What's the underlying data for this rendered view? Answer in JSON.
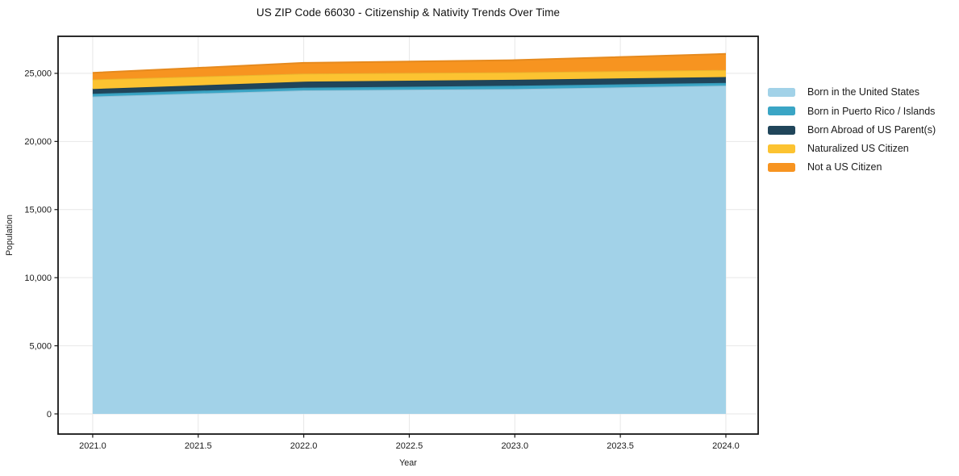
{
  "title": "US ZIP Code 66030 - Citizenship & Nativity Trends Over Time",
  "chart_data": {
    "type": "area",
    "stacked": true,
    "title": "US ZIP Code 66030 - Citizenship & Nativity Trends Over Time",
    "xlabel": "Year",
    "ylabel": "Population",
    "x": [
      2021,
      2022,
      2023,
      2024
    ],
    "series": [
      {
        "name": "Born in the United States",
        "color": "#a2d2e8",
        "values": [
          23300,
          23750,
          23850,
          24100
        ]
      },
      {
        "name": "Born in Puerto Rico / Islands",
        "color": "#3aa5c5",
        "values": [
          200,
          200,
          240,
          200
        ]
      },
      {
        "name": "Born Abroad of US Parent(s)",
        "color": "#20455a",
        "values": [
          350,
          440,
          440,
          430
        ]
      },
      {
        "name": "Naturalized US Citizen",
        "color": "#fcc331",
        "values": [
          700,
          590,
          550,
          520
        ]
      },
      {
        "name": "Not a US Citizen",
        "color": "#f79420",
        "values": [
          490,
          790,
          890,
          1180
        ]
      }
    ],
    "xlim": [
      2020.836,
      2024.153
    ],
    "ylim": [
      -1480,
      27720
    ],
    "xticks": {
      "values": [
        2021,
        2021.5,
        2022,
        2022.5,
        2023,
        2023.5,
        2024
      ],
      "labels": [
        "2021.0",
        "2021.5",
        "2022.0",
        "2022.5",
        "2023.0",
        "2023.5",
        "2024.0"
      ]
    },
    "yticks": {
      "values": [
        0,
        5000,
        10000,
        15000,
        20000,
        25000
      ],
      "labels": [
        "0",
        "5,000",
        "10,000",
        "15,000",
        "20,000",
        "25,000"
      ]
    },
    "grid": true,
    "legend_position": "right-outside",
    "colors": {
      "gridline": "#e7e7e7",
      "spine": "#151515",
      "text": "#1a1a1a",
      "background": "#ffffff"
    }
  }
}
